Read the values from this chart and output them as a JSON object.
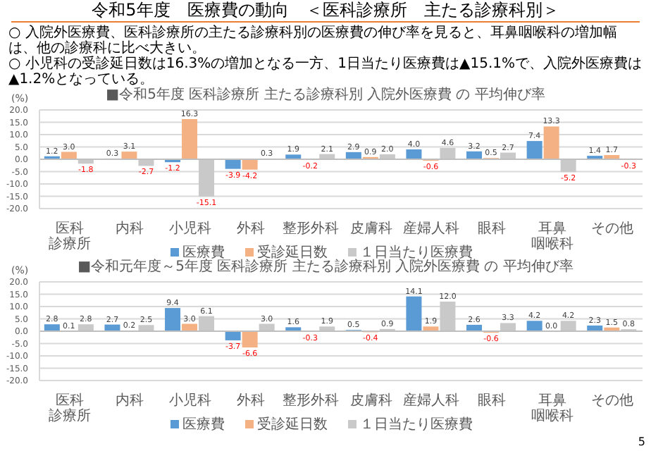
{
  "chart_data": [
    {
      "type": "bar",
      "title": "■令和5年度 医科診療所 主たる診療科別 入院外医療費 の 平均伸び率",
      "ylabel": "(%)",
      "annotations": [
        "令和5年度　医療費の動向　＜医科診療所　主たる診療科別＞",
        "○ 入院外医療費、医科診療所の主たる診療科別の医療費の伸び率を見ると、耳鼻咽喉科の増加幅は、他の診療科に比べ大きい。",
        "○ 小児科の受診延日数は16.3%の増加となる一方、1日当たり医療費は▲15.1%で、入院外医療費は▲1.2%となっている。"
      ],
      "categories": [
        "医科診療所",
        "内科",
        "小児科",
        "外科",
        "整形外科",
        "皮膚科",
        "産婦人科",
        "眼科",
        "耳鼻咽喉科",
        "その他"
      ],
      "series": [
        {
          "name": "医療費",
          "color": "#5b9bd5",
          "values": [
            1.2,
            0.3,
            -1.2,
            -3.9,
            1.9,
            2.9,
            4.0,
            3.2,
            7.4,
            1.4
          ],
          "value_labels": [
            "1.2",
            "0.3",
            "-1.2",
            "-3.9",
            "1.9",
            "2.9",
            "4.0",
            "3.2",
            "7.4",
            "1.4"
          ]
        },
        {
          "name": "受診延日数",
          "color": "#f4b183",
          "values": [
            3.0,
            3.1,
            16.3,
            -4.2,
            -0.2,
            0.9,
            -0.6,
            0.5,
            13.3,
            1.7
          ],
          "value_labels": [
            "3.0",
            "3.1",
            "16.3",
            "-4.2",
            "-0.2",
            "0.9",
            "-0.6",
            "0.5",
            "13.3",
            "1.7"
          ]
        },
        {
          "name": "１日当たり医療費",
          "color": "#c9c9c9",
          "values": [
            -1.8,
            -2.7,
            -15.1,
            0.3,
            2.1,
            2.0,
            4.6,
            2.7,
            -5.2,
            -0.3
          ],
          "value_labels": [
            "-1.8",
            "-2.7",
            "-15.1",
            "0.3",
            "2.1",
            "2.0",
            "4.6",
            "2.7",
            "-5.2",
            "-0.3"
          ]
        }
      ],
      "ylim": [
        -20,
        20
      ],
      "yticks": [
        {
          "value": -20,
          "label": "-20.0"
        },
        {
          "value": -15,
          "label": "-15.0"
        },
        {
          "value": -10,
          "label": "-10.0"
        },
        {
          "value": -5,
          "label": "-5.0"
        },
        {
          "value": 0,
          "label": "0.0"
        },
        {
          "value": 5,
          "label": "5.0"
        },
        {
          "value": 10,
          "label": "10.0"
        },
        {
          "value": 15,
          "label": "15.0"
        },
        {
          "value": 20,
          "label": "20.0"
        }
      ],
      "grid": "y",
      "legend": "bottom"
    },
    {
      "type": "bar",
      "title": "■令和元年度～5年度 医科診療所 主たる診療科別 入院外医療費 の 平均伸び率",
      "ylabel": "(%)",
      "annotations": [
        "5"
      ],
      "categories": [
        "医科診療所",
        "内科",
        "小児科",
        "外科",
        "整形外科",
        "皮膚科",
        "産婦人科",
        "眼科",
        "耳鼻咽喉科",
        "その他"
      ],
      "series": [
        {
          "name": "医療費",
          "color": "#5b9bd5",
          "values": [
            2.8,
            2.7,
            9.4,
            -3.7,
            1.6,
            0.5,
            14.1,
            2.6,
            4.2,
            2.3
          ],
          "value_labels": [
            "2.8",
            "2.7",
            "9.4",
            "-3.7",
            "1.6",
            "0.5",
            "14.1",
            "2.6",
            "4.2",
            "2.3"
          ]
        },
        {
          "name": "受診延日数",
          "color": "#f4b183",
          "values": [
            0.1,
            0.2,
            3.0,
            -6.6,
            -0.3,
            -0.4,
            1.9,
            -0.6,
            0.0,
            1.5
          ],
          "value_labels": [
            "0.1",
            "0.2",
            "3.0",
            "-6.6",
            "-0.3",
            "-0.4",
            "1.9",
            "-0.6",
            "0.0",
            "1.5"
          ]
        },
        {
          "name": "１日当たり医療費",
          "color": "#c9c9c9",
          "values": [
            2.8,
            2.5,
            6.1,
            3.0,
            1.9,
            0.9,
            12.0,
            3.3,
            4.2,
            0.8
          ],
          "value_labels": [
            "2.8",
            "2.5",
            "6.1",
            "3.0",
            "1.9",
            "0.9",
            "12.0",
            "3.3",
            "4.2",
            "0.8"
          ]
        }
      ],
      "ylim": [
        -20,
        20
      ],
      "yticks": [
        {
          "value": -20,
          "label": "-20.0"
        },
        {
          "value": -15,
          "label": "-15.0"
        },
        {
          "value": -10,
          "label": "-10.0"
        },
        {
          "value": -5,
          "label": "-5.0"
        },
        {
          "value": 0,
          "label": "0.0"
        },
        {
          "value": 5,
          "label": "5.0"
        },
        {
          "value": 10,
          "label": "10.0"
        },
        {
          "value": 15,
          "label": "15.0"
        },
        {
          "value": 20,
          "label": "20.0"
        }
      ],
      "grid": "y",
      "legend": "bottom"
    }
  ]
}
